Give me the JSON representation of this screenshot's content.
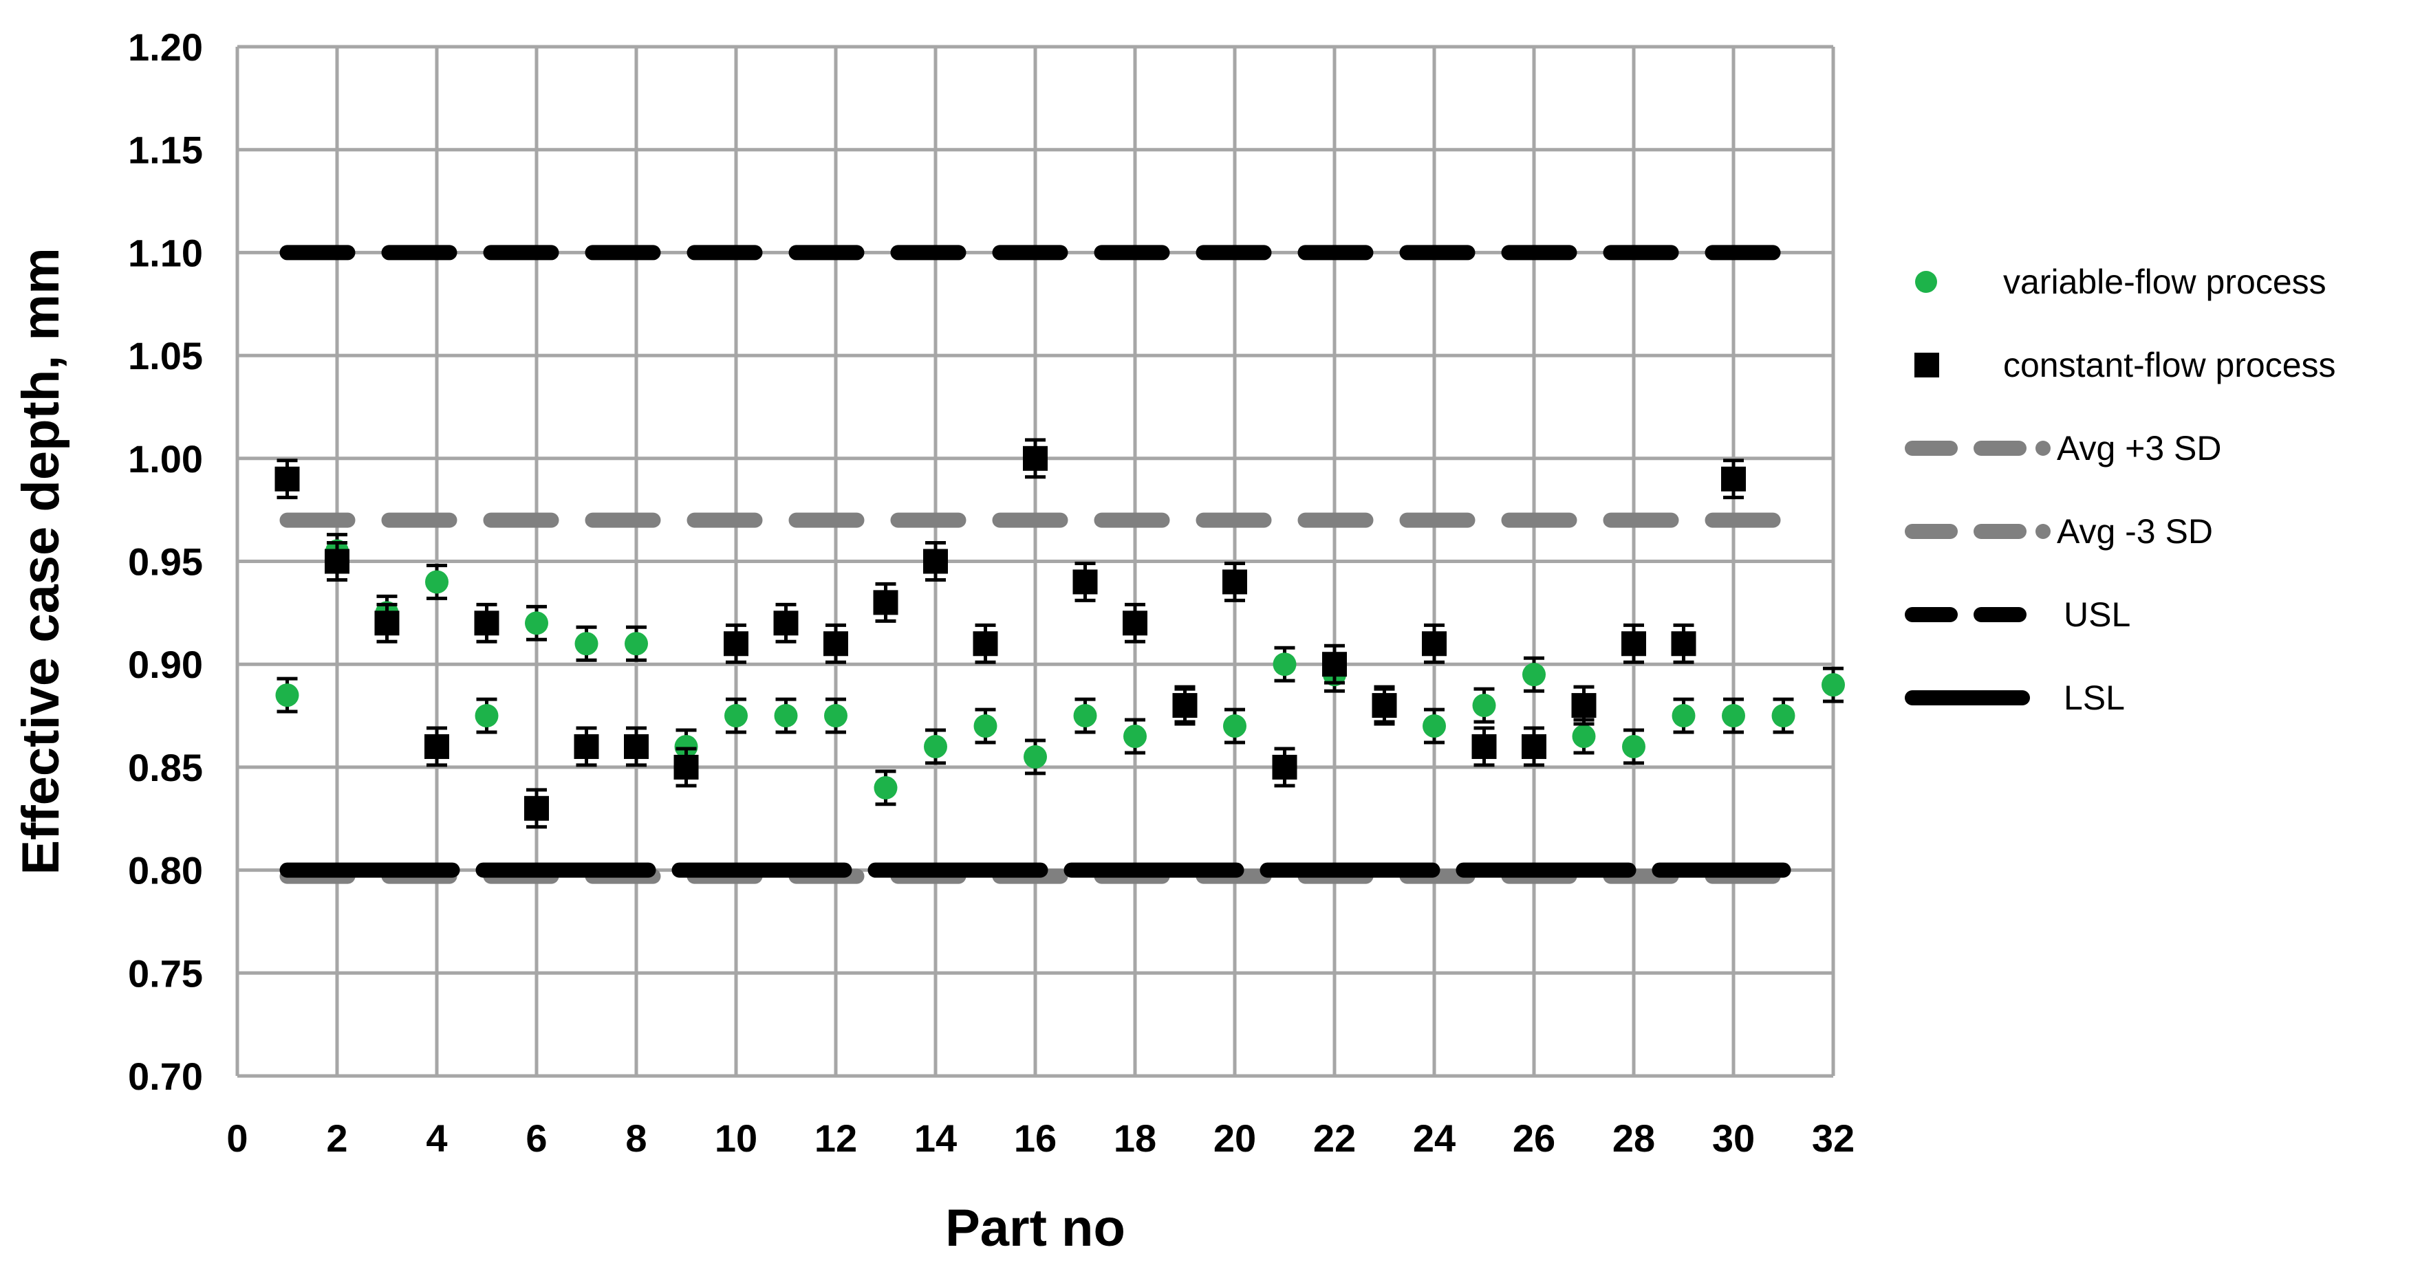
{
  "chart_data": {
    "type": "scatter",
    "title": "",
    "xlabel": "Part no",
    "ylabel": "Effective case depth, mm",
    "xlim": [
      0,
      32
    ],
    "ylim": [
      0.7,
      1.2
    ],
    "x_ticks": [
      "0",
      "2",
      "4",
      "6",
      "8",
      "10",
      "12",
      "14",
      "16",
      "18",
      "20",
      "22",
      "24",
      "26",
      "28",
      "30",
      "32"
    ],
    "y_ticks": [
      "0.70",
      "0.75",
      "0.80",
      "0.85",
      "0.90",
      "0.95",
      "1.00",
      "1.05",
      "1.10",
      "1.15",
      "1.20"
    ],
    "grid": true,
    "legend_position": "right",
    "series": [
      {
        "name": "variable-flow process",
        "kind": "marker-circle",
        "color": "#1db34a",
        "error": 0.008,
        "x": [
          1,
          2,
          3,
          4,
          5,
          6,
          7,
          8,
          9,
          10,
          11,
          12,
          13,
          14,
          15,
          16,
          17,
          18,
          19,
          20,
          21,
          22,
          23,
          24,
          25,
          26,
          27,
          28,
          29,
          30,
          31,
          32
        ],
        "values": [
          0.885,
          0.955,
          0.925,
          0.94,
          0.875,
          0.92,
          0.91,
          0.91,
          0.86,
          0.875,
          0.875,
          0.875,
          0.84,
          0.86,
          0.87,
          0.855,
          0.875,
          0.865,
          0.88,
          0.87,
          0.9,
          0.895,
          0.88,
          0.87,
          0.88,
          0.895,
          0.865,
          0.86,
          0.875,
          0.875,
          0.875,
          0.89
        ]
      },
      {
        "name": "constant-flow process",
        "kind": "marker-square",
        "color": "#000000",
        "error": 0.009,
        "x": [
          1,
          2,
          3,
          4,
          5,
          6,
          7,
          8,
          9,
          10,
          11,
          12,
          13,
          14,
          15,
          16,
          17,
          18,
          19,
          20,
          21,
          22,
          23,
          24,
          25,
          26,
          27,
          28,
          29,
          30
        ],
        "values": [
          0.99,
          0.95,
          0.92,
          0.86,
          0.92,
          0.83,
          0.86,
          0.86,
          0.85,
          0.91,
          0.92,
          0.91,
          0.93,
          0.95,
          0.91,
          1.0,
          0.94,
          0.92,
          0.88,
          0.94,
          0.85,
          0.9,
          0.88,
          0.91,
          0.86,
          0.86,
          0.88,
          0.91,
          0.91,
          0.99
        ]
      },
      {
        "name": "Avg +3 SD",
        "kind": "line-dashed",
        "color": "#808080",
        "values": [
          0.97
        ],
        "x_range": [
          1,
          31
        ]
      },
      {
        "name": "Avg -3 SD",
        "kind": "line-dashed",
        "color": "#808080",
        "values": [
          0.797
        ],
        "x_range": [
          1,
          31
        ]
      },
      {
        "name": "USL",
        "kind": "line-dashed",
        "color": "#000000",
        "values": [
          1.1
        ],
        "x_range": [
          1,
          31
        ]
      },
      {
        "name": "LSL",
        "kind": "line-long-dash",
        "color": "#000000",
        "values": [
          0.8
        ],
        "x_range": [
          1,
          31
        ]
      }
    ]
  }
}
